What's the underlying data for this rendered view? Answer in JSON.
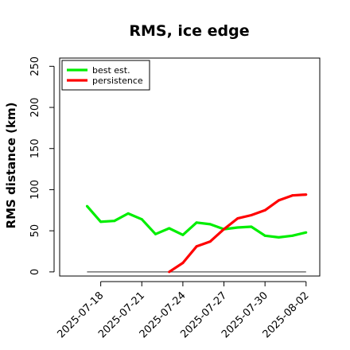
{
  "chart_data": {
    "type": "line",
    "title": "RMS, ice edge",
    "xlabel": "",
    "ylabel": "RMS distance (km)",
    "x_ticks": [
      "2025-07-18",
      "2025-07-21",
      "2025-07-24",
      "2025-07-27",
      "2025-07-30",
      "2025-08-02"
    ],
    "x_range": [
      "2025-07-15",
      "2025-08-03"
    ],
    "ylim": [
      -5,
      260
    ],
    "y_ticks": [
      0,
      50,
      100,
      150,
      200,
      250
    ],
    "grid": false,
    "legend_position": "top-left",
    "baseline": 0,
    "series": [
      {
        "name": "best est.",
        "color": "#00ee00",
        "points": [
          [
            "2025-07-17",
            80
          ],
          [
            "2025-07-18",
            61
          ],
          [
            "2025-07-19",
            62
          ],
          [
            "2025-07-20",
            71
          ],
          [
            "2025-07-21",
            64
          ],
          [
            "2025-07-22",
            46
          ],
          [
            "2025-07-23",
            53
          ],
          [
            "2025-07-24",
            45
          ],
          [
            "2025-07-25",
            60
          ],
          [
            "2025-07-26",
            58
          ],
          [
            "2025-07-27",
            52
          ],
          [
            "2025-07-28",
            54
          ],
          [
            "2025-07-29",
            55
          ],
          [
            "2025-07-30",
            44
          ],
          [
            "2025-07-31",
            42
          ],
          [
            "2025-08-01",
            44
          ],
          [
            "2025-08-02",
            48
          ]
        ]
      },
      {
        "name": "persistence",
        "color": "#ff0000",
        "points": [
          [
            "2025-07-23",
            0
          ],
          [
            "2025-07-24",
            11
          ],
          [
            "2025-07-25",
            31
          ],
          [
            "2025-07-26",
            37
          ],
          [
            "2025-07-27",
            52
          ],
          [
            "2025-07-28",
            65
          ],
          [
            "2025-07-29",
            69
          ],
          [
            "2025-07-30",
            75
          ],
          [
            "2025-07-31",
            87
          ],
          [
            "2025-08-01",
            93
          ],
          [
            "2025-08-02",
            94
          ]
        ]
      }
    ]
  }
}
